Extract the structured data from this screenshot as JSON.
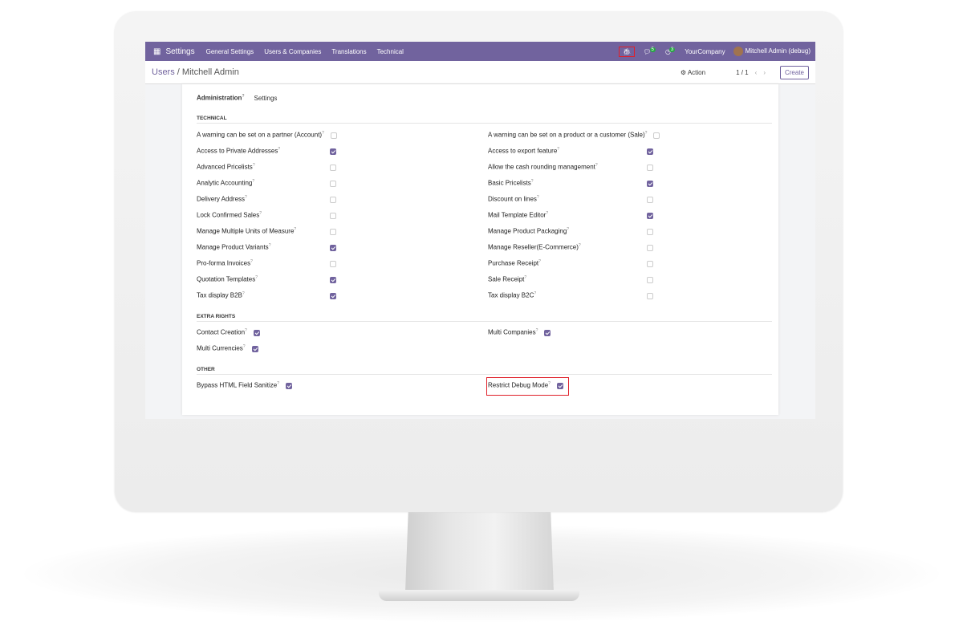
{
  "navbar": {
    "app": "Settings",
    "menus": [
      "General Settings",
      "Users & Companies",
      "Translations",
      "Technical"
    ],
    "messages_count": "5",
    "activities_count": "3",
    "company": "YourCompany",
    "user": "Mitchell Admin (debug)"
  },
  "breadcrumb": {
    "parent": "Users",
    "current": "Mitchell Admin"
  },
  "control": {
    "action": "Action",
    "pager": "1 / 1",
    "create": "Create"
  },
  "tabs": {
    "active": "Administration",
    "other": "Settings"
  },
  "sections": {
    "technical": {
      "title": "TECHNICAL",
      "left": [
        {
          "label": "A warning can be set on a partner (Account)",
          "checked": false
        },
        {
          "label": "Access to Private Addresses",
          "checked": true
        },
        {
          "label": "Advanced Pricelists",
          "checked": false
        },
        {
          "label": "Analytic Accounting",
          "checked": false
        },
        {
          "label": "Delivery Address",
          "checked": false
        },
        {
          "label": "Lock Confirmed Sales",
          "checked": false
        },
        {
          "label": "Manage Multiple Units of Measure",
          "checked": false
        },
        {
          "label": "Manage Product Variants",
          "checked": true
        },
        {
          "label": "Pro-forma Invoices",
          "checked": false
        },
        {
          "label": "Quotation Templates",
          "checked": true
        },
        {
          "label": "Tax display B2B",
          "checked": true
        }
      ],
      "right": [
        {
          "label": "A warning can be set on a product or a customer (Sale)",
          "checked": false
        },
        {
          "label": "Access to export feature",
          "checked": true
        },
        {
          "label": "Allow the cash rounding management",
          "checked": false
        },
        {
          "label": "Basic Pricelists",
          "checked": true
        },
        {
          "label": "Discount on lines",
          "checked": false
        },
        {
          "label": "Mail Template Editor",
          "checked": true
        },
        {
          "label": "Manage Product Packaging",
          "checked": false
        },
        {
          "label": "Manage Reseller(E-Commerce)",
          "checked": false
        },
        {
          "label": "Purchase Receipt",
          "checked": false
        },
        {
          "label": "Sale Receipt",
          "checked": false
        },
        {
          "label": "Tax display B2C",
          "checked": false
        }
      ]
    },
    "extra": {
      "title": "EXTRA RIGHTS",
      "left": [
        {
          "label": "Contact Creation",
          "checked": true
        },
        {
          "label": "Multi Currencies",
          "checked": true
        }
      ],
      "right": [
        {
          "label": "Multi Companies",
          "checked": true
        }
      ]
    },
    "other": {
      "title": "OTHER",
      "left": [
        {
          "label": "Bypass HTML Field Sanitize",
          "checked": true
        }
      ],
      "right": [
        {
          "label": "Restrict Debug Mode",
          "checked": true
        }
      ]
    }
  },
  "colors": {
    "brand": "#71639e",
    "highlight": "#e0202a"
  }
}
